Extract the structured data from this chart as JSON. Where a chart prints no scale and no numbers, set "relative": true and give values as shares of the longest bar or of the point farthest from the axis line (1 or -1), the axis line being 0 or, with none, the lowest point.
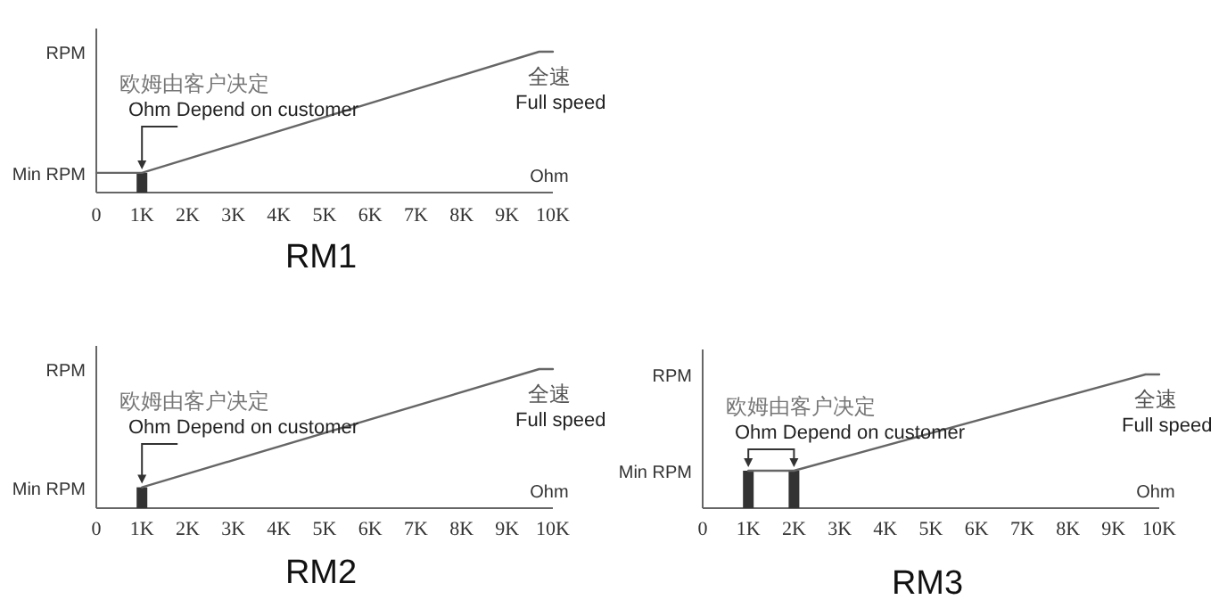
{
  "chart_data": [
    {
      "type": "line",
      "title": "RM1",
      "xlabel": "Ohm",
      "relative": true,
      "xlim": [
        0,
        10000
      ],
      "xticks": [
        {
          "value": 0,
          "label": "0"
        },
        {
          "value": 1000,
          "label": "1K"
        },
        {
          "value": 2000,
          "label": "2K"
        },
        {
          "value": 3000,
          "label": "3K"
        },
        {
          "value": 4000,
          "label": "4K"
        },
        {
          "value": 5000,
          "label": "5K"
        },
        {
          "value": 6000,
          "label": "6K"
        },
        {
          "value": 7000,
          "label": "7K"
        },
        {
          "value": 8000,
          "label": "8K"
        },
        {
          "value": 9000,
          "label": "9K"
        },
        {
          "value": 10000,
          "label": "10K"
        }
      ],
      "annotations": [
        "RPM",
        "欧姆由客户决定",
        "Ohm  Depend on customer",
        "全速",
        "Full speed",
        "Min RPM"
      ],
      "series": [
        {
          "type": "bar",
          "color": "#333333",
          "x": [
            1000
          ],
          "values": [
            0.14
          ]
        },
        {
          "type": "line",
          "color": "#666666",
          "x": [
            0,
            1000,
            9700,
            10000
          ],
          "values": [
            0.14,
            0.14,
            1,
            1
          ]
        }
      ]
    },
    {
      "type": "line",
      "title": "RM2",
      "xlabel": "Ohm",
      "relative": true,
      "xlim": [
        0,
        10000
      ],
      "xticks": [
        {
          "value": 0,
          "label": "0"
        },
        {
          "value": 1000,
          "label": "1K"
        },
        {
          "value": 2000,
          "label": "2K"
        },
        {
          "value": 3000,
          "label": "3K"
        },
        {
          "value": 4000,
          "label": "4K"
        },
        {
          "value": 5000,
          "label": "5K"
        },
        {
          "value": 6000,
          "label": "6K"
        },
        {
          "value": 7000,
          "label": "7K"
        },
        {
          "value": 8000,
          "label": "8K"
        },
        {
          "value": 9000,
          "label": "9K"
        },
        {
          "value": 10000,
          "label": "10K"
        }
      ],
      "annotations": [
        "RPM",
        "欧姆由客户决定",
        "Ohm  Depend on customer",
        "全速",
        "Full speed",
        "Min RPM"
      ],
      "series": [
        {
          "type": "bar",
          "color": "#333333",
          "x": [
            1000
          ],
          "values": [
            0.15
          ]
        },
        {
          "type": "line",
          "color": "#666666",
          "x": [
            1000,
            9700,
            10000
          ],
          "values": [
            0.15,
            1,
            1
          ]
        }
      ]
    },
    {
      "type": "line",
      "title": "RM3",
      "xlabel": "Ohm",
      "relative": true,
      "xlim": [
        0,
        10000
      ],
      "xticks": [
        {
          "value": 0,
          "label": "0"
        },
        {
          "value": 1000,
          "label": "1K"
        },
        {
          "value": 2000,
          "label": "2K"
        },
        {
          "value": 3000,
          "label": "3K"
        },
        {
          "value": 4000,
          "label": "4K"
        },
        {
          "value": 5000,
          "label": "5K"
        },
        {
          "value": 6000,
          "label": "6K"
        },
        {
          "value": 7000,
          "label": "7K"
        },
        {
          "value": 8000,
          "label": "8K"
        },
        {
          "value": 9000,
          "label": "9K"
        },
        {
          "value": 10000,
          "label": "10K"
        }
      ],
      "annotations": [
        "RPM",
        "欧姆由客户决定",
        "Ohm  Depend on customer",
        "全速",
        "Full speed",
        "Min RPM"
      ],
      "series": [
        {
          "type": "bar",
          "color": "#333333",
          "x": [
            1000,
            2000
          ],
          "values": [
            0.28,
            0.28
          ]
        },
        {
          "type": "line",
          "color": "#666666",
          "x": [
            1000,
            2000,
            9700,
            10000
          ],
          "values": [
            0.28,
            0.28,
            1,
            1
          ]
        }
      ]
    }
  ]
}
